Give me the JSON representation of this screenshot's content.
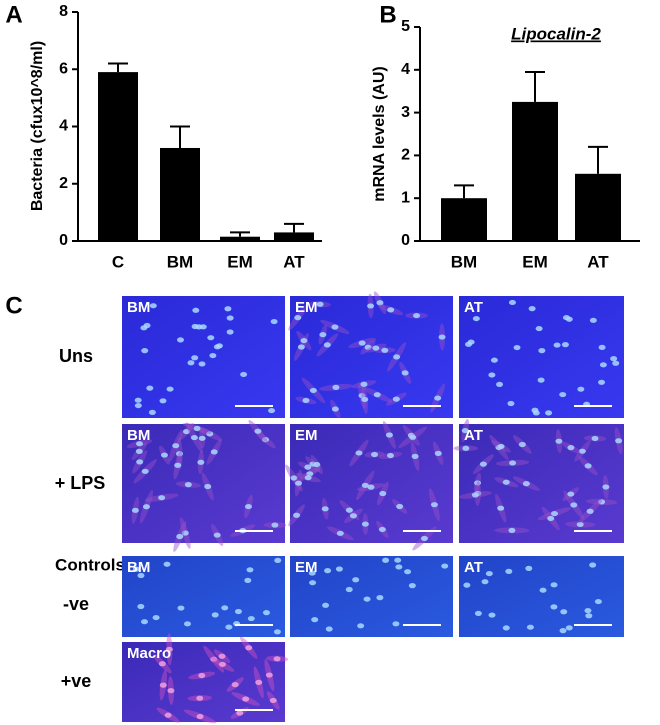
{
  "chart_data": [
    {
      "type": "bar",
      "panel": "A",
      "ylabel": "Bacteria (cfux10^8/ml)",
      "categories": [
        "C",
        "BM",
        "EM",
        "AT"
      ],
      "values": [
        5.9,
        3.25,
        0.15,
        0.3
      ],
      "errors": [
        0.3,
        0.75,
        0.15,
        0.3
      ],
      "color": "#000000",
      "ylim": [
        0,
        8
      ],
      "yticks": [
        0,
        2,
        4,
        6,
        8
      ]
    },
    {
      "type": "bar",
      "panel": "B",
      "title": "Lipocalin-2",
      "ylabel": "mRNA levels (AU)",
      "categories": [
        "BM",
        "EM",
        "AT"
      ],
      "values": [
        1.0,
        3.25,
        1.57
      ],
      "errors": [
        0.3,
        0.7,
        0.63
      ],
      "color": "#000000",
      "ylim": [
        0,
        5
      ],
      "yticks": [
        0,
        1,
        2,
        3,
        4,
        5
      ]
    }
  ],
  "panel_c": {
    "panel": "C",
    "rows": [
      {
        "label": "Uns",
        "images": [
          "BM",
          "EM",
          "AT"
        ]
      },
      {
        "label": "+ LPS",
        "images": [
          "BM",
          "EM",
          "AT"
        ]
      },
      {
        "group_label": "Controls",
        "label": "-ve",
        "images": [
          "BM",
          "EM",
          "AT"
        ]
      },
      {
        "label": "+ve",
        "images": [
          "Macro"
        ]
      }
    ]
  }
}
